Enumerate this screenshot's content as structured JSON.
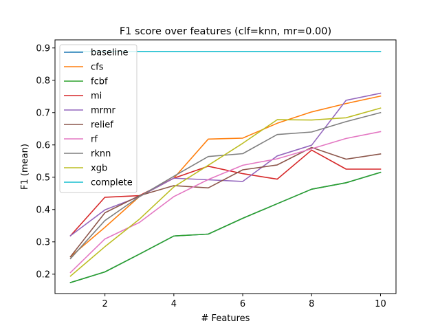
{
  "chart_data": {
    "type": "line",
    "title": "F1 score over features (clf=knn, mr=0.00)",
    "xlabel": "# Features",
    "ylabel": "F1 (mean)",
    "xlim": [
      0.55,
      10.45
    ],
    "ylim": [
      0.14,
      0.925
    ],
    "xticks": [
      2,
      4,
      6,
      8,
      10
    ],
    "yticks": [
      0.2,
      0.3,
      0.4,
      0.5,
      0.6,
      0.7,
      0.8,
      0.9
    ],
    "grid": false,
    "legend_position": "top-left",
    "x": [
      1,
      2,
      3,
      4,
      5,
      6,
      7,
      8,
      9,
      10
    ],
    "series": [
      {
        "name": "baseline",
        "color": "#1f77b4",
        "values": [
          0.174,
          0.207,
          0.262,
          0.318,
          0.324,
          0.373,
          0.418,
          0.463,
          0.483,
          0.515
        ]
      },
      {
        "name": "cfs",
        "color": "#ff7f0e",
        "values": [
          0.254,
          0.345,
          0.44,
          0.497,
          0.618,
          0.621,
          0.667,
          0.702,
          0.728,
          0.751
        ]
      },
      {
        "name": "fcbf",
        "color": "#2ca02c",
        "values": [
          0.174,
          0.207,
          0.262,
          0.318,
          0.324,
          0.373,
          0.418,
          0.463,
          0.483,
          0.515
        ]
      },
      {
        "name": "mi",
        "color": "#d62728",
        "values": [
          0.319,
          0.438,
          0.443,
          0.497,
          0.534,
          0.511,
          0.494,
          0.584,
          0.525,
          0.525
        ]
      },
      {
        "name": "mrmr",
        "color": "#9467bd",
        "values": [
          0.319,
          0.399,
          0.44,
          0.497,
          0.492,
          0.487,
          0.566,
          0.599,
          0.738,
          0.76
        ]
      },
      {
        "name": "relief",
        "color": "#8c564b",
        "values": [
          0.254,
          0.39,
          0.443,
          0.474,
          0.467,
          0.523,
          0.538,
          0.592,
          0.556,
          0.572
        ]
      },
      {
        "name": "rf",
        "color": "#e377c2",
        "values": [
          0.205,
          0.309,
          0.36,
          0.44,
          0.493,
          0.537,
          0.557,
          0.588,
          0.62,
          0.641
        ]
      },
      {
        "name": "rknn",
        "color": "#7f7f7f",
        "values": [
          0.248,
          0.366,
          0.44,
          0.503,
          0.564,
          0.573,
          0.632,
          0.64,
          0.672,
          0.7
        ]
      },
      {
        "name": "xgb",
        "color": "#bcbd22",
        "values": [
          0.194,
          0.285,
          0.37,
          0.47,
          0.537,
          0.605,
          0.678,
          0.677,
          0.684,
          0.714
        ]
      },
      {
        "name": "complete",
        "color": "#17becf",
        "values": [
          0.889,
          0.889,
          0.889,
          0.889,
          0.889,
          0.889,
          0.889,
          0.889,
          0.889,
          0.889
        ]
      }
    ]
  }
}
